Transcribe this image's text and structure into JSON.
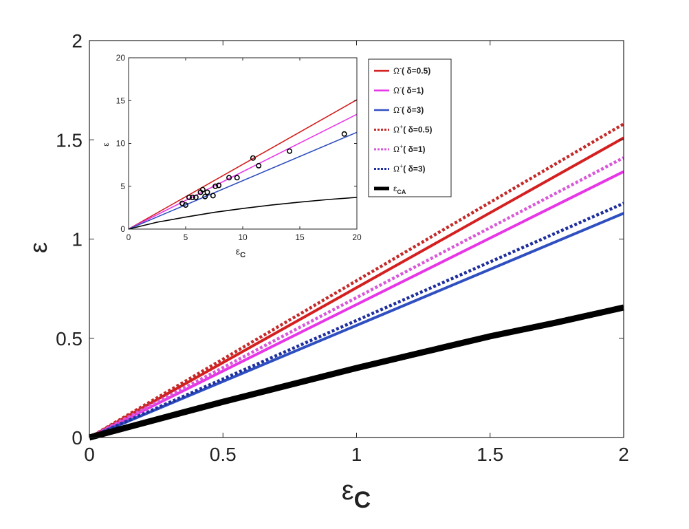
{
  "chart_data": [
    {
      "type": "line",
      "xlabel": "ε",
      "xlabel_sub": "C",
      "ylabel": "ε",
      "xlim": [
        0,
        2
      ],
      "ylim": [
        0,
        2
      ],
      "xticks": [
        0,
        0.5,
        1,
        1.5,
        2
      ],
      "xtick_labels": [
        "0",
        "0.5",
        "1",
        "1.5",
        "2"
      ],
      "yticks": [
        0,
        0.5,
        1,
        1.5,
        2
      ],
      "ytick_labels": [
        "0",
        "0.5",
        "1",
        "1.5",
        "2"
      ],
      "grid": false,
      "series": [
        {
          "key": "om_minus_05",
          "color": "#d42020",
          "dash": "solid",
          "x": [
            0,
            2
          ],
          "y": [
            0,
            1.51
          ]
        },
        {
          "key": "om_minus_1",
          "color": "#e636e6",
          "dash": "solid",
          "x": [
            0,
            2
          ],
          "y": [
            0,
            1.34
          ]
        },
        {
          "key": "om_minus_3",
          "color": "#2f4fc0",
          "dash": "solid",
          "x": [
            0,
            2
          ],
          "y": [
            0,
            1.13
          ]
        },
        {
          "key": "om_plus_05",
          "color": "#c42a2a",
          "dash": "dotted",
          "x": [
            0,
            2
          ],
          "y": [
            0,
            1.58
          ]
        },
        {
          "key": "om_plus_1",
          "color": "#d958d9",
          "dash": "dotted",
          "x": [
            0,
            2
          ],
          "y": [
            0,
            1.41
          ]
        },
        {
          "key": "om_plus_3",
          "color": "#1f2f9e",
          "dash": "dotted",
          "x": [
            0,
            2
          ],
          "y": [
            0,
            1.18
          ]
        },
        {
          "key": "eps_ca",
          "color": "#000000",
          "dash": "thick",
          "x": [
            0,
            0.25,
            0.5,
            0.75,
            1,
            1.25,
            1.5,
            1.75,
            2
          ],
          "y": [
            0,
            0.09,
            0.18,
            0.265,
            0.35,
            0.43,
            0.51,
            0.58,
            0.655
          ]
        }
      ]
    },
    {
      "type": "line",
      "inset": true,
      "xlabel": "ε",
      "xlabel_sub": "C",
      "ylabel": "ε",
      "xlim": [
        0,
        20
      ],
      "ylim": [
        0,
        20
      ],
      "xticks": [
        0,
        5,
        10,
        15,
        20
      ],
      "xtick_labels": [
        "0",
        "5",
        "10",
        "15",
        "20"
      ],
      "yticks": [
        0,
        5,
        10,
        15,
        20
      ],
      "ytick_labels": [
        "0",
        "5",
        "10",
        "15",
        "20"
      ],
      "series": [
        {
          "key": "om_minus_05",
          "color": "#d42020",
          "dash": "solid",
          "x": [
            0,
            20
          ],
          "y": [
            0,
            15.1
          ]
        },
        {
          "key": "om_minus_1",
          "color": "#e636e6",
          "dash": "solid",
          "x": [
            0,
            20
          ],
          "y": [
            0,
            13.4
          ]
        },
        {
          "key": "om_minus_3",
          "color": "#2f4fc0",
          "dash": "solid",
          "x": [
            0,
            20
          ],
          "y": [
            0,
            11.3
          ]
        },
        {
          "key": "eps_ca",
          "color": "#000000",
          "dash": "solid",
          "x": [
            0,
            2.5,
            5,
            7.5,
            10,
            12.5,
            15,
            17.5,
            20
          ],
          "y": [
            0,
            0.8,
            1.4,
            1.95,
            2.4,
            2.8,
            3.15,
            3.45,
            3.7
          ]
        }
      ],
      "points": {
        "x": [
          4.7,
          5.0,
          5.3,
          5.6,
          5.9,
          6.3,
          6.5,
          6.7,
          6.9,
          7.4,
          7.6,
          7.9,
          8.8,
          9.5,
          10.9,
          11.4,
          14.1,
          18.9
        ],
        "y": [
          3.0,
          2.8,
          3.7,
          3.7,
          3.7,
          4.3,
          4.6,
          3.8,
          4.3,
          3.9,
          5.0,
          5.1,
          6.0,
          6.0,
          8.3,
          7.4,
          9.1,
          11.1
        ]
      }
    }
  ],
  "legend": {
    "placement": "top-right",
    "items": [
      {
        "series": "om_minus_05",
        "symbol": "Ω",
        "sup": "-",
        "label": "( δ=0.5)",
        "color": "#d42020",
        "dash": "solid"
      },
      {
        "series": "om_minus_1",
        "symbol": "Ω",
        "sup": "-",
        "label": "( δ=1)",
        "color": "#e636e6",
        "dash": "solid"
      },
      {
        "series": "om_minus_3",
        "symbol": "Ω",
        "sup": "-",
        "label": "( δ=3)",
        "color": "#2f4fc0",
        "dash": "solid"
      },
      {
        "series": "om_plus_05",
        "symbol": "Ω",
        "sup": "+",
        "label": "( δ=0.5)",
        "color": "#c42a2a",
        "dash": "dotted"
      },
      {
        "series": "om_plus_1",
        "symbol": "Ω",
        "sup": "+",
        "label": "( δ=1)",
        "color": "#d958d9",
        "dash": "dotted"
      },
      {
        "series": "om_plus_3",
        "symbol": "Ω",
        "sup": "+",
        "label": "( δ=3)",
        "color": "#1f2f9e",
        "dash": "dotted"
      },
      {
        "series": "eps_ca",
        "symbol": "ε",
        "sub": "CA",
        "label": "",
        "color": "#000000",
        "dash": "thick"
      }
    ]
  }
}
